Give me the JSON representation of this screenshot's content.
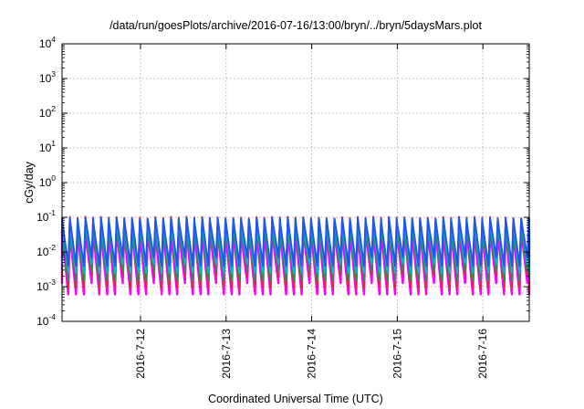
{
  "chart_data": {
    "type": "line",
    "title": "/data/run/goesPlots/archive/2016-07-16/13:00/bryn/../bryn/5daysMars.plot",
    "xlabel": "Coordinated Universal Time (UTC)",
    "ylabel": "cGy/day",
    "yscale": "log",
    "ylim": [
      0.0001,
      10000
    ],
    "xlim": [
      "2016-07-11T02:00",
      "2016-07-16T13:00"
    ],
    "y_ticks": [
      {
        "base": "10",
        "exp": "-4",
        "value": 0.0001
      },
      {
        "base": "10",
        "exp": "-3",
        "value": 0.001
      },
      {
        "base": "10",
        "exp": "-2",
        "value": 0.01
      },
      {
        "base": "10",
        "exp": "-1",
        "value": 0.1
      },
      {
        "base": "10",
        "exp": "0",
        "value": 1
      },
      {
        "base": "10",
        "exp": "1",
        "value": 10
      },
      {
        "base": "10",
        "exp": "2",
        "value": 100
      },
      {
        "base": "10",
        "exp": "3",
        "value": 1000
      },
      {
        "base": "10",
        "exp": "4",
        "value": 10000
      }
    ],
    "x_ticks": [
      {
        "label": "2016-7-12",
        "value": "2016-07-12T00:00"
      },
      {
        "label": "2016-7-13",
        "value": "2016-07-13T00:00"
      },
      {
        "label": "2016-7-14",
        "value": "2016-07-14T00:00"
      },
      {
        "label": "2016-7-15",
        "value": "2016-07-15T00:00"
      },
      {
        "label": "2016-7-16",
        "value": "2016-07-16T00:00"
      }
    ],
    "grid": true,
    "cycles_per_day": 11,
    "series": [
      {
        "color": "#ff00ff",
        "peak": 0.038,
        "trough": 0.0006
      },
      {
        "color": "#e0284a",
        "peak": 0.09,
        "trough": 0.0009
      },
      {
        "color": "#2e8b57",
        "peak": 0.05,
        "trough": 0.0015
      },
      {
        "color": "#00b8d8",
        "peak": 0.075,
        "trough": 0.0025
      },
      {
        "color": "#2255ee",
        "peak": 0.085,
        "trough": 0.004
      }
    ]
  }
}
